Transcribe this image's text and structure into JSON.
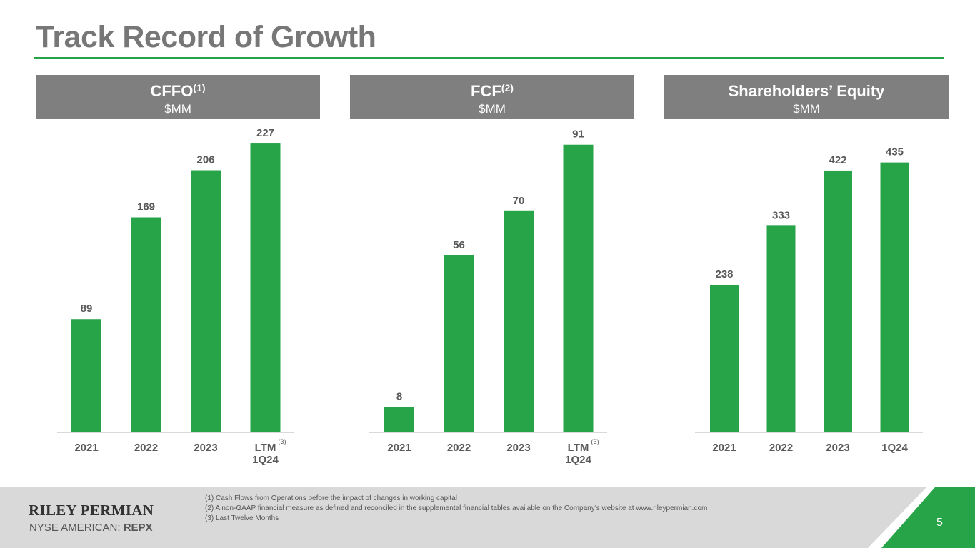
{
  "title": "Track Record of Growth",
  "colors": {
    "accent": "#27a348",
    "header_bg": "#7f7f7f",
    "footer_bg": "#d9d9d9"
  },
  "panels": [
    {
      "title": "CFFO",
      "sup": "(1)",
      "unit": "$MM"
    },
    {
      "title": "FCF",
      "sup": "(2)",
      "unit": "$MM"
    },
    {
      "title": "Shareholders’ Equity",
      "sup": "",
      "unit": "$MM"
    }
  ],
  "chart_data": [
    {
      "type": "bar",
      "title": "CFFO(1) $MM",
      "categories": [
        "2021",
        "2022",
        "2023",
        "LTM 1Q24"
      ],
      "values": [
        89,
        169,
        206,
        227
      ],
      "category_labels": [
        {
          "line1": "2021",
          "line2": "",
          "sup": ""
        },
        {
          "line1": "2022",
          "line2": "",
          "sup": ""
        },
        {
          "line1": "2023",
          "line2": "",
          "sup": ""
        },
        {
          "line1": "LTM",
          "line2": "1Q24",
          "sup": "(3)"
        }
      ],
      "ylim": [
        0,
        236
      ],
      "color": "#27a348"
    },
    {
      "type": "bar",
      "title": "FCF(2) $MM",
      "categories": [
        "2021",
        "2022",
        "2023",
        "LTM 1Q24"
      ],
      "values": [
        8,
        56,
        70,
        91
      ],
      "category_labels": [
        {
          "line1": "2021",
          "line2": "",
          "sup": ""
        },
        {
          "line1": "2022",
          "line2": "",
          "sup": ""
        },
        {
          "line1": "2023",
          "line2": "",
          "sup": ""
        },
        {
          "line1": "LTM",
          "line2": "1Q24",
          "sup": "(3)"
        }
      ],
      "ylim": [
        0,
        95
      ],
      "color": "#27a348"
    },
    {
      "type": "bar",
      "title": "Shareholders’ Equity $MM",
      "categories": [
        "2021",
        "2022",
        "2023",
        "1Q24"
      ],
      "values": [
        238,
        333,
        422,
        435
      ],
      "category_labels": [
        {
          "line1": "2021",
          "line2": "",
          "sup": ""
        },
        {
          "line1": "2022",
          "line2": "",
          "sup": ""
        },
        {
          "line1": "2023",
          "line2": "",
          "sup": ""
        },
        {
          "line1": "1Q24",
          "line2": "",
          "sup": ""
        }
      ],
      "ylim": [
        0,
        484
      ],
      "color": "#27a348"
    }
  ],
  "footer": {
    "logo": "RILEY PERMIAN",
    "exchange_prefix": "NYSE AMERICAN: ",
    "ticker": "REPX",
    "footnotes": [
      "(1)  Cash Flows from Operations before the impact of changes in working capital",
      "(2)  A non-GAAP financial measure as defined and reconciled in the supplemental financial tables available on the Company’s website at www.rileypermian.com",
      "(3)  Last Twelve Months"
    ],
    "page_number": "5"
  }
}
